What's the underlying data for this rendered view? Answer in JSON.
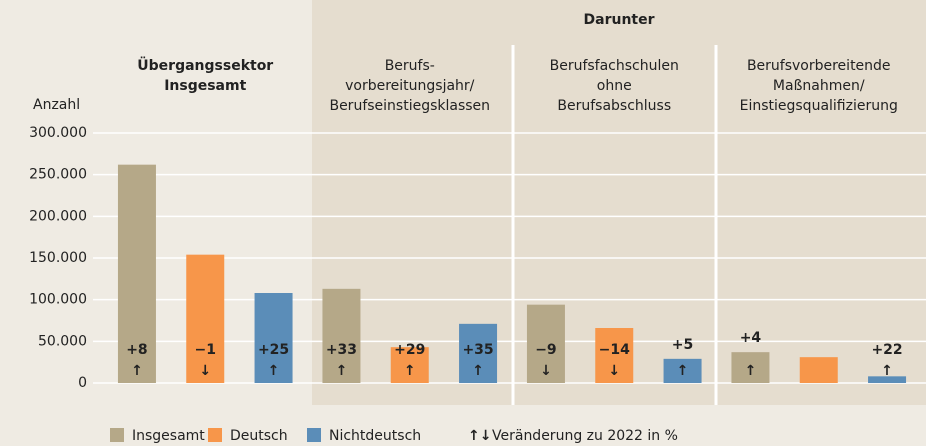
{
  "chart_data": {
    "type": "bar",
    "y_label": "Anzahl",
    "group_header": "Darunter",
    "categories": [
      [
        "Übergangssektor",
        "Insgesamt"
      ],
      [
        "Berufs-",
        "vorbereitungsjahr/",
        "Berufseinstiegsklassen"
      ],
      [
        "Berufsfachschulen",
        "ohne",
        "Berufsabschluss"
      ],
      [
        "Berufsvorbereitende",
        "Maßnahmen/",
        "Einstiegsqualifizierung"
      ]
    ],
    "series": [
      {
        "name": "Insgesamt",
        "color": "#b5a888",
        "values": [
          262000,
          113000,
          94000,
          37000
        ],
        "change_labels": [
          "+8",
          "+33",
          "−9",
          "+4"
        ],
        "change_arrows": [
          "↑",
          "↑",
          "↓",
          "↑"
        ]
      },
      {
        "name": "Deutsch",
        "color": "#f7964a",
        "values": [
          154000,
          43000,
          66000,
          31000
        ],
        "change_labels": [
          "−1",
          "+29",
          "−14",
          null
        ],
        "change_arrows": [
          "↓",
          "↑",
          "↓",
          null
        ]
      },
      {
        "name": "Nichtdeutsch",
        "color": "#5b8db8",
        "values": [
          108000,
          71000,
          29000,
          8000
        ],
        "change_labels": [
          "+25",
          "+35",
          "+5",
          "+22"
        ],
        "change_arrows": [
          "↑",
          "↑",
          "↑",
          "↑"
        ]
      }
    ],
    "legend_note_arrows": "↑↓",
    "legend_note": "Veränderung zu 2022 in %",
    "ylim": [
      0,
      300000
    ],
    "yticks": [
      0,
      {
        "value": 50000,
        "label": "50.000"
      },
      {
        "value": 100000,
        "label": "100.000"
      },
      {
        "value": 150000,
        "label": "150.000"
      },
      {
        "value": 200000,
        "label": "200.000"
      },
      {
        "value": 250000,
        "label": "250.000"
      },
      {
        "value": 300000,
        "label": "300.000"
      }
    ],
    "grid": true
  }
}
